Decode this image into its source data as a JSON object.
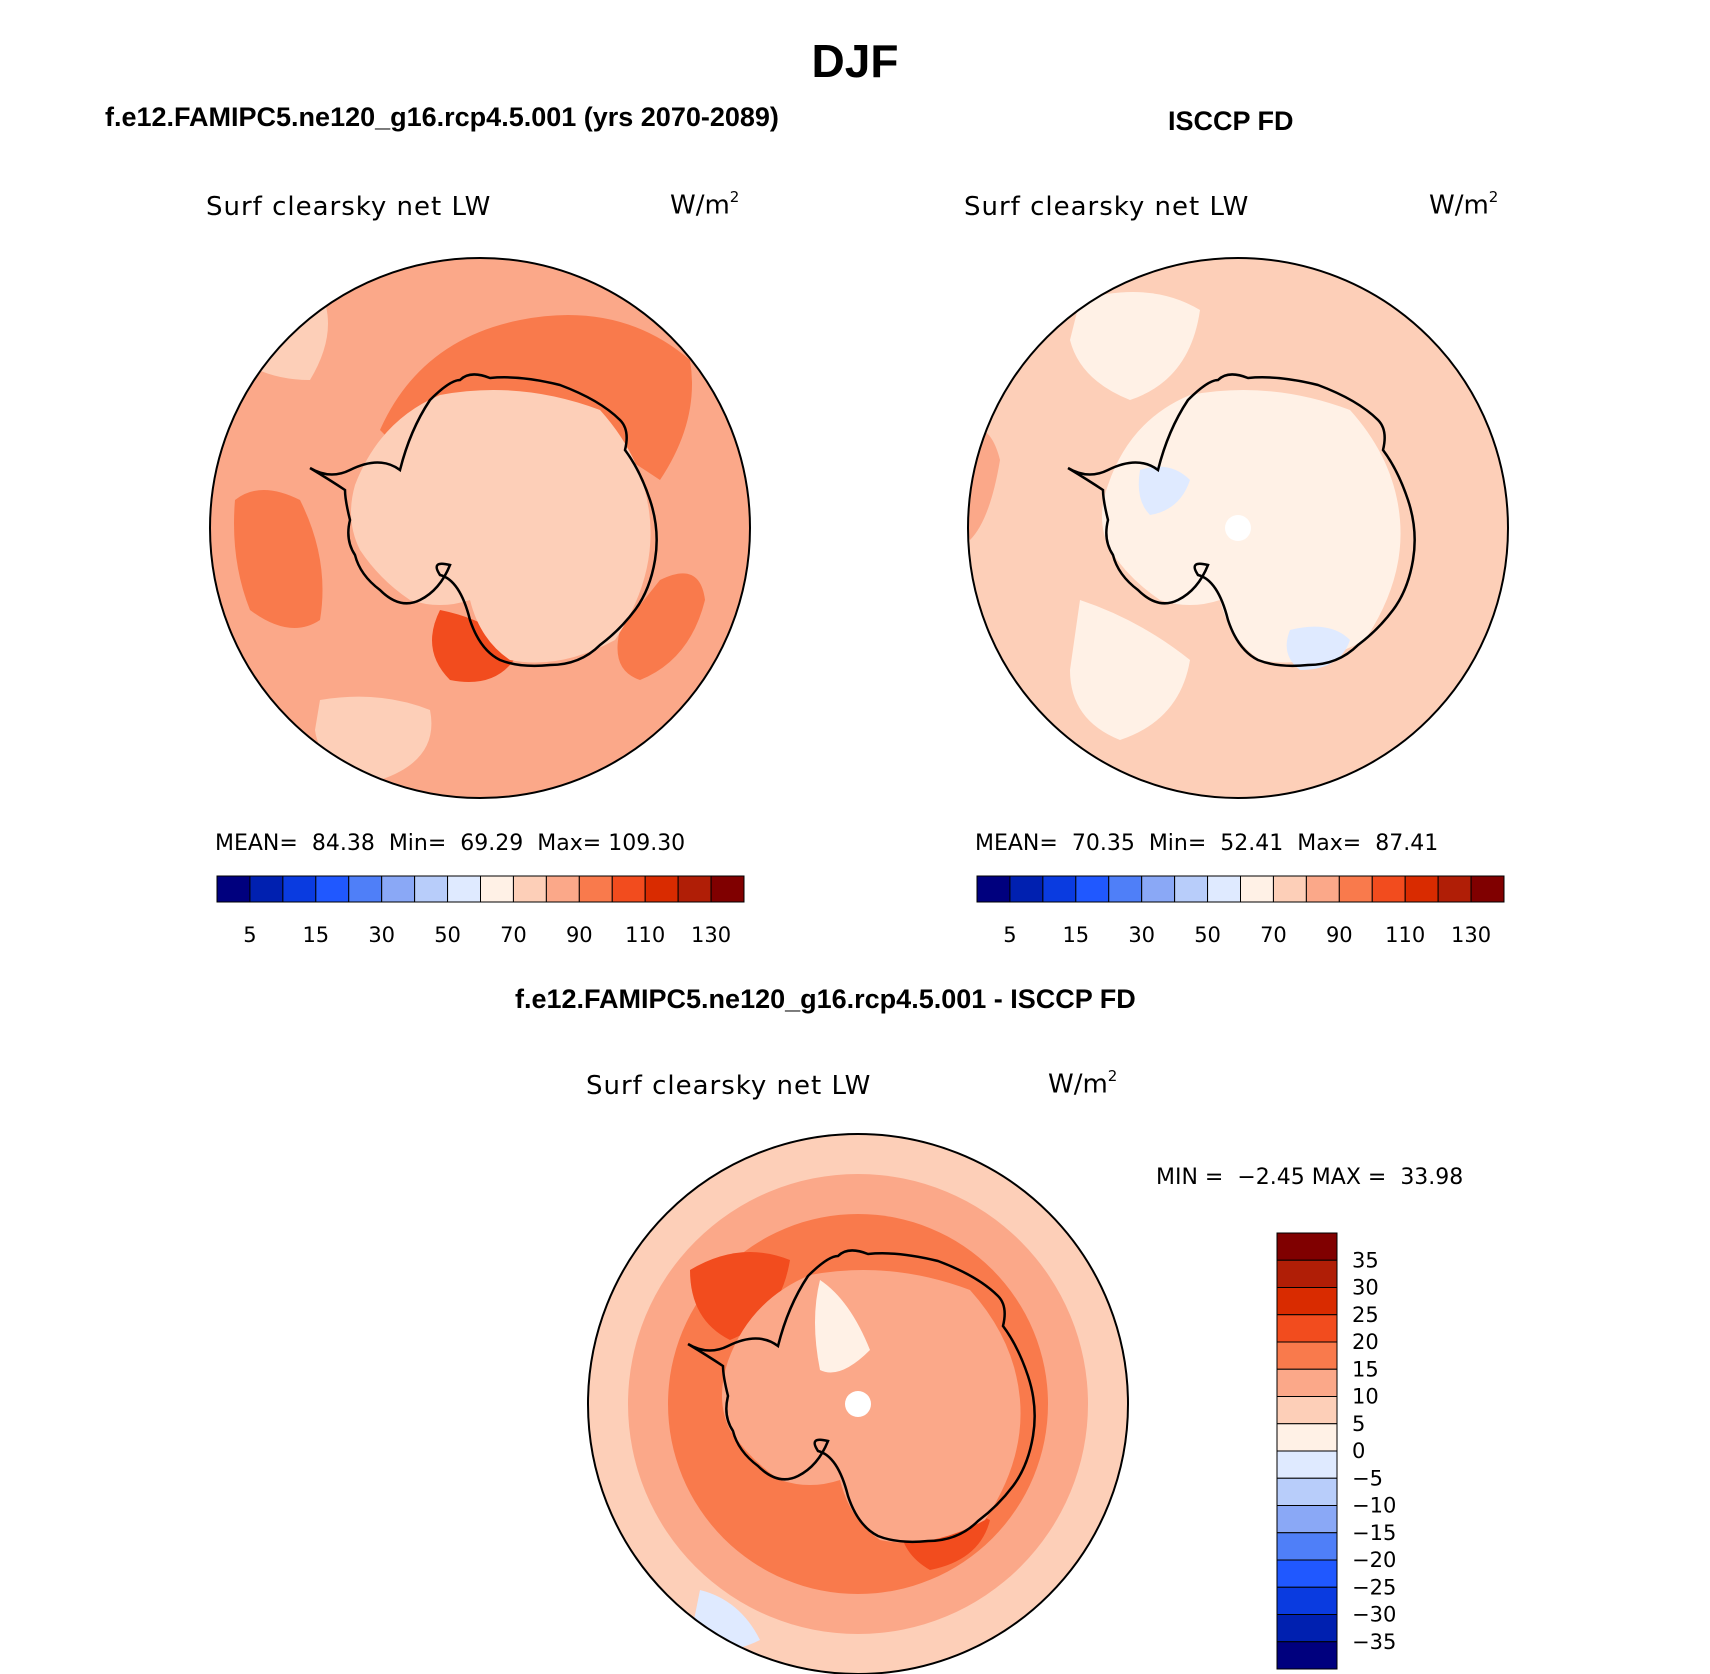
{
  "figure": {
    "title": "DJF"
  },
  "panels": {
    "model": {
      "title": "f.e12.FAMIPC5.ne120_g16.rcp4.5.001 (yrs 2070-2089)",
      "variable": "Surf clearsky net LW",
      "units": "W/m",
      "units_sup": "2",
      "mean_label": "MEAN=",
      "mean": "84.38",
      "min_label": "Min=",
      "min": "69.29",
      "max_label": "Max=",
      "max": "109.30"
    },
    "obs": {
      "title": "ISCCP FD",
      "variable": "Surf clearsky net LW",
      "units": "W/m",
      "units_sup": "2",
      "mean_label": "MEAN=",
      "mean": "70.35",
      "min_label": "Min=",
      "min": "52.41",
      "max_label": "Max=",
      "max": "87.41"
    },
    "diff": {
      "title": "f.e12.FAMIPC5.ne120_g16.rcp4.5.001 - ISCCP FD",
      "variable": "Surf clearsky net LW",
      "units": "W/m",
      "units_sup": "2",
      "min_label": "MIN =",
      "min": "−2.45",
      "max_label": "MAX =",
      "max": "33.98"
    }
  },
  "colorbars": {
    "abs": {
      "colors": [
        "#00007e",
        "#0020b0",
        "#0a3be0",
        "#2058ff",
        "#4f7ff8",
        "#8aa8f6",
        "#b8cdfa",
        "#dfeaff",
        "#fff1e6",
        "#fdcfb8",
        "#fba889",
        "#f97a4c",
        "#f24c1e",
        "#d92b00",
        "#b01e06",
        "#800000"
      ],
      "labels": [
        "5",
        "15",
        "30",
        "50",
        "70",
        "90",
        "110",
        "130"
      ]
    },
    "diff": {
      "colors": [
        "#800000",
        "#b01e06",
        "#d92b00",
        "#f24c1e",
        "#f97a4c",
        "#fba889",
        "#fdcfb8",
        "#fff1e6",
        "#dfeaff",
        "#b8cdfa",
        "#8aa8f6",
        "#4f7ff8",
        "#2058ff",
        "#0a3be0",
        "#0020b0",
        "#00007e"
      ],
      "labels": [
        "35",
        "30",
        "25",
        "20",
        "15",
        "10",
        "5",
        "0",
        "−5",
        "−10",
        "−15",
        "−20",
        "−25",
        "−30",
        "−35"
      ]
    }
  }
}
